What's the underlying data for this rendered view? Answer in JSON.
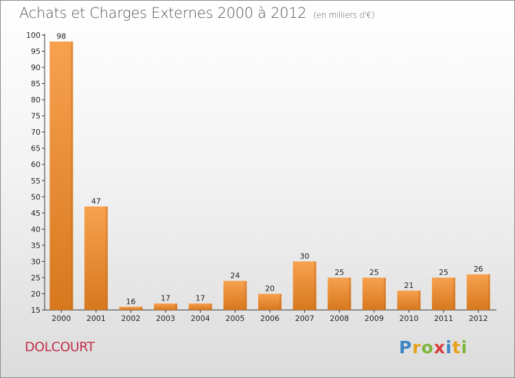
{
  "header": {
    "title": "Achats et Charges Externes 2000 à 2012",
    "unit": "(en milliers d'€)"
  },
  "footer": {
    "commune": "DOLCOURT",
    "logo_letters": [
      "P",
      "r",
      "o",
      "x",
      "i",
      "t",
      "i"
    ]
  },
  "colors": {
    "bar_top": "#f7a14f",
    "bar_bottom": "#d7781e",
    "commune_text": "#c0304a"
  },
  "chart_data": {
    "type": "bar",
    "title": "Achats et Charges Externes 2000 à 2012",
    "subtitle": "(en milliers d'€)",
    "categories": [
      "2000",
      "2001",
      "2002",
      "2003",
      "2004",
      "2005",
      "2006",
      "2007",
      "2008",
      "2009",
      "2010",
      "2011",
      "2012"
    ],
    "values": [
      98,
      47,
      16,
      17,
      17,
      24,
      20,
      30,
      25,
      25,
      21,
      25,
      26
    ],
    "ylim": [
      15,
      100
    ],
    "yticks": [
      15,
      20,
      25,
      30,
      35,
      40,
      45,
      50,
      55,
      60,
      65,
      70,
      75,
      80,
      85,
      90,
      95,
      100
    ],
    "grid": false
  }
}
